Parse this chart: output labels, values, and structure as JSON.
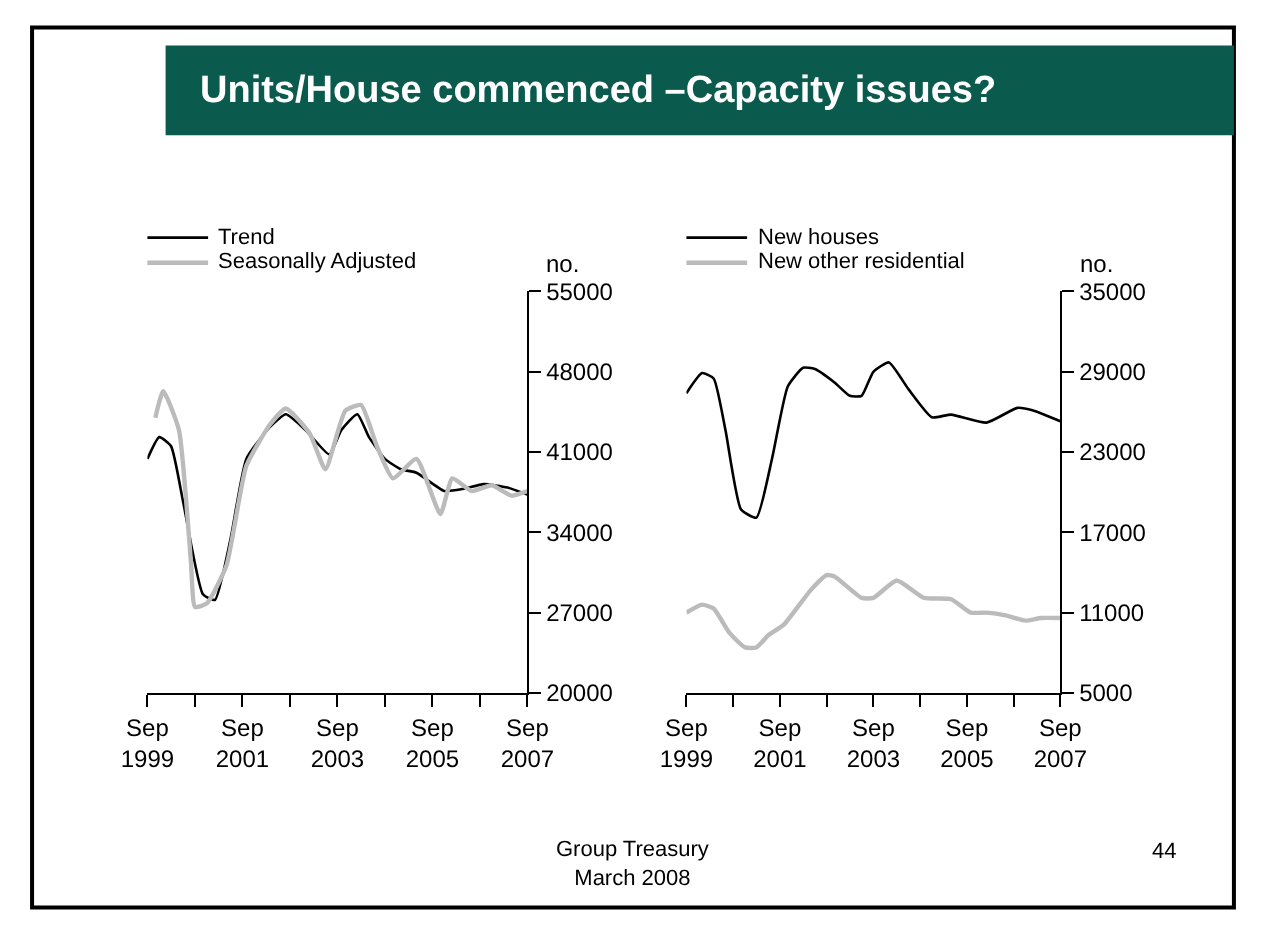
{
  "chart_data": [
    {
      "type": "line",
      "title": "Units/House commenced –Capacity issues?",
      "ylabel": "no.",
      "legend": "top left",
      "line_style": "solid",
      "xlim": [
        "1999-09",
        "2007-09"
      ],
      "xticks": [
        {
          "value": "1999-09",
          "label": "Sep\n1999"
        },
        {
          "value": "2000-09",
          "label": null
        },
        {
          "value": "2001-09",
          "label": "Sep\n2001"
        },
        {
          "value": "2002-09",
          "label": null
        },
        {
          "value": "2003-09",
          "label": "Sep\n2003"
        },
        {
          "value": "2004-09",
          "label": null
        },
        {
          "value": "2005-09",
          "label": "Sep\n2005"
        },
        {
          "value": "2006-09",
          "label": null
        },
        {
          "value": "2007-09",
          "label": "Sep\n2007"
        }
      ],
      "ylim": [
        20000,
        55000
      ],
      "yticks": [
        20000,
        27000,
        34000,
        41000,
        48000,
        55000
      ],
      "series": [
        {
          "name": "Trend",
          "color": "#000000",
          "x": [
            "1999-09",
            "1999-12",
            "2000-03",
            "2000-06",
            "2000-11",
            "2001-02",
            "2001-06",
            "2001-10",
            "2002-04",
            "2002-08",
            "2003-01",
            "2003-07",
            "2003-10",
            "2004-02",
            "2004-05",
            "2004-09",
            "2005-01",
            "2005-05",
            "2005-12",
            "2006-05",
            "2006-10",
            "2007-04",
            "2007-09"
          ],
          "values": [
            40400,
            42300,
            41500,
            36700,
            28600,
            28100,
            33400,
            40400,
            43200,
            44300,
            42900,
            40800,
            42900,
            44300,
            42300,
            40400,
            39500,
            39200,
            37600,
            37800,
            38200,
            37900,
            37300
          ]
        },
        {
          "name": "Seasonally Adjusted",
          "color": "#bbbbbb",
          "x": [
            "1999-11",
            "2000-01",
            "2000-05",
            "2000-08",
            "2000-09",
            "2000-12",
            "2001-05",
            "2001-10",
            "2002-04",
            "2002-08",
            "2003-02",
            "2003-06",
            "2003-11",
            "2004-03",
            "2004-07",
            "2004-11",
            "2005-05",
            "2005-11",
            "2006-02",
            "2006-07",
            "2006-12",
            "2007-05",
            "2007-09"
          ],
          "values": [
            44000,
            46300,
            42900,
            31400,
            27500,
            27800,
            31100,
            39800,
            43400,
            44800,
            42600,
            39500,
            44600,
            45100,
            41500,
            38700,
            40400,
            35600,
            38700,
            37600,
            38100,
            37200,
            37600
          ]
        }
      ]
    },
    {
      "type": "line",
      "ylabel": "no.",
      "legend": "top left",
      "line_style": "solid",
      "annotations": [
        "Group Treasury\nMarch 2008",
        "44"
      ],
      "xlim": [
        "1999-09",
        "2007-09"
      ],
      "xticks": [
        {
          "value": "1999-09",
          "label": "Sep\n1999"
        },
        {
          "value": "2000-09",
          "label": null
        },
        {
          "value": "2001-09",
          "label": "Sep\n2001"
        },
        {
          "value": "2002-09",
          "label": null
        },
        {
          "value": "2003-09",
          "label": "Sep\n2003"
        },
        {
          "value": "2004-09",
          "label": null
        },
        {
          "value": "2005-09",
          "label": "Sep\n2005"
        },
        {
          "value": "2006-09",
          "label": null
        },
        {
          "value": "2007-09",
          "label": "Sep\n2007"
        }
      ],
      "ylim": [
        5000,
        35000
      ],
      "yticks": [
        5000,
        11000,
        17000,
        23000,
        29000,
        35000
      ],
      "series": [
        {
          "name": "New houses",
          "color": "#000000",
          "x": [
            "1999-09",
            "2000-01",
            "2000-04",
            "2000-07",
            "2000-11",
            "2001-03",
            "2001-07",
            "2001-11",
            "2002-03",
            "2002-06",
            "2002-11",
            "2003-03",
            "2003-06",
            "2003-09",
            "2004-01",
            "2004-06",
            "2004-12",
            "2005-05",
            "2006-02",
            "2006-10",
            "2007-02",
            "2007-09"
          ],
          "values": [
            27400,
            28900,
            28500,
            24700,
            18700,
            18100,
            22500,
            27900,
            29300,
            29200,
            28200,
            27200,
            27200,
            29000,
            29700,
            27700,
            25600,
            25800,
            25200,
            26300,
            26100,
            25300
          ]
        },
        {
          "name": "New other residential",
          "color": "#bbbbbb",
          "x": [
            "1999-09",
            "2000-01",
            "2000-04",
            "2000-08",
            "2000-12",
            "2001-03",
            "2001-06",
            "2001-10",
            "2002-05",
            "2002-09",
            "2002-11",
            "2003-06",
            "2003-09",
            "2004-03",
            "2004-10",
            "2005-05",
            "2005-10",
            "2006-02",
            "2006-07",
            "2006-12",
            "2007-04",
            "2007-09"
          ],
          "values": [
            11000,
            11600,
            11300,
            9500,
            8400,
            8400,
            9300,
            10100,
            12700,
            13800,
            13700,
            12100,
            12100,
            13400,
            12100,
            12000,
            11000,
            11000,
            10800,
            10400,
            10600,
            10600
          ]
        }
      ]
    }
  ]
}
